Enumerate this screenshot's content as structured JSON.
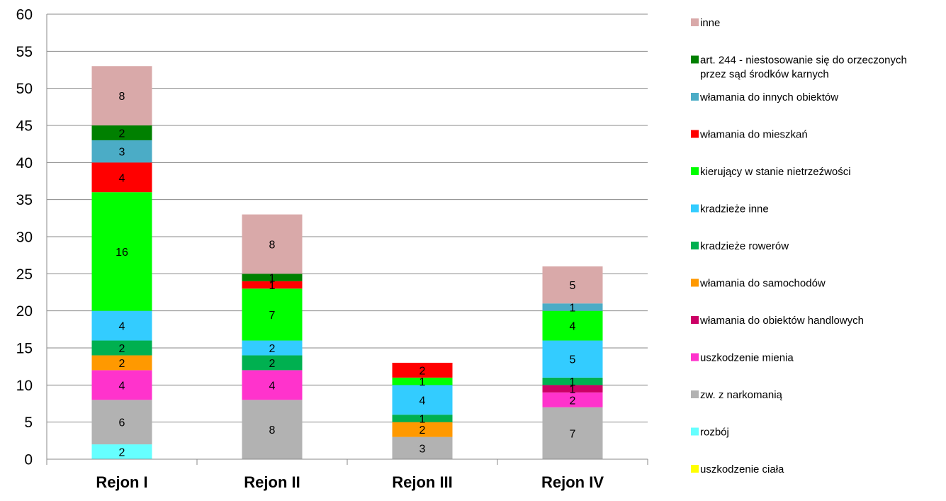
{
  "chart_data": {
    "type": "bar",
    "stacked": true,
    "title": "",
    "xlabel": "",
    "ylabel": "",
    "ylim": [
      0,
      60
    ],
    "yticks": [
      0,
      5,
      10,
      15,
      20,
      25,
      30,
      35,
      40,
      45,
      50,
      55,
      60
    ],
    "grid": true,
    "legend_position": "right",
    "categories": [
      "Rejon I",
      "Rejon II",
      "Rejon III",
      "Rejon IV"
    ],
    "series": [
      {
        "name": "uszkodzenie ciała",
        "color": "#FFFF00",
        "values": [
          0,
          0,
          0,
          0
        ]
      },
      {
        "name": "rozbój",
        "color": "#66FFFF",
        "values": [
          2,
          0,
          0,
          0
        ]
      },
      {
        "name": "zw. z narkomanią",
        "color": "#B2B2B2",
        "values": [
          6,
          8,
          3,
          7
        ]
      },
      {
        "name": "uszkodzenie mienia",
        "color": "#FF33CC",
        "values": [
          4,
          4,
          0,
          2
        ]
      },
      {
        "name": "włamania do obiektów handlowych",
        "color": "#CC0066",
        "values": [
          0,
          0,
          0,
          1
        ]
      },
      {
        "name": "włamania do samochodów",
        "color": "#FF9900",
        "values": [
          2,
          0,
          2,
          0
        ]
      },
      {
        "name": "kradzieże rowerów",
        "color": "#00B050",
        "values": [
          2,
          2,
          1,
          1
        ]
      },
      {
        "name": "kradzieże inne",
        "color": "#33CCFF",
        "values": [
          4,
          2,
          4,
          5
        ]
      },
      {
        "name": "kierujący w stanie nietrzeźwości",
        "color": "#00FF00",
        "values": [
          16,
          7,
          1,
          4
        ]
      },
      {
        "name": "włamania do mieszkań",
        "color": "#FF0000",
        "values": [
          4,
          1,
          2,
          0
        ]
      },
      {
        "name": "włamania do innych obiektów",
        "color": "#4BACC6",
        "values": [
          3,
          0,
          0,
          1
        ]
      },
      {
        "name": "art. 244 - niestosowanie się do orzeczonych przez sąd środków karnych",
        "color": "#008000",
        "values": [
          2,
          1,
          0,
          0
        ]
      },
      {
        "name": "inne",
        "color": "#D9A9A9",
        "values": [
          8,
          8,
          0,
          5
        ]
      }
    ]
  },
  "legend_lines": {
    "inne": [
      "inne"
    ],
    "art. 244 - niestosowanie się do orzeczonych przez sąd środków karnych": [
      "art. 244 - niestosowanie się do orzeczonych",
      "przez sąd środków karnych"
    ]
  }
}
